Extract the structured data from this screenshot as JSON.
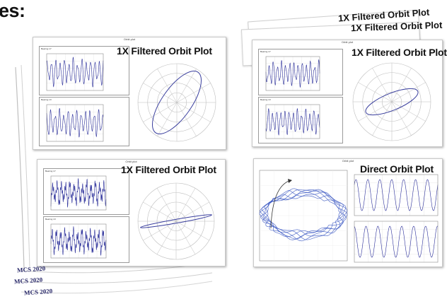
{
  "heading": "es:",
  "stack_labels": [
    "1X Filtered Orbit Plot",
    "1X Filtered Orbit Plot"
  ],
  "slides": [
    {
      "title": "1X Filtered Orbit Plot",
      "status_bar": "Orbit plot",
      "panel_top": "Bearing 1Y",
      "panel_bottom": "Bearing 1X",
      "orbit_type": "ellipse-steep"
    },
    {
      "title": "1X Filtered Orbit Plot",
      "status_bar": "Orbit plot",
      "panel_top": "Bearing 1Y",
      "panel_bottom": "Bearing 1X",
      "orbit_type": "ellipse-flat"
    },
    {
      "title": "1X Filtered Orbit Plot",
      "status_bar": "Orbit plot",
      "panel_top": "Bearing 1Y",
      "panel_bottom": "Bearing 1X",
      "orbit_type": "line"
    },
    {
      "title": "Direct Orbit Plot",
      "status_bar": "Orbit plot",
      "panel_top": "",
      "panel_bottom": "",
      "orbit_type": "direct"
    }
  ],
  "footer": [
    "MCS 2020",
    "MCS 2020",
    "MCS 2020"
  ],
  "colors": {
    "trace": "#2b2f9a",
    "grid": "#bdbdbd",
    "orbit": "#3a3f9e",
    "direct_orbit": "#3553c0"
  }
}
